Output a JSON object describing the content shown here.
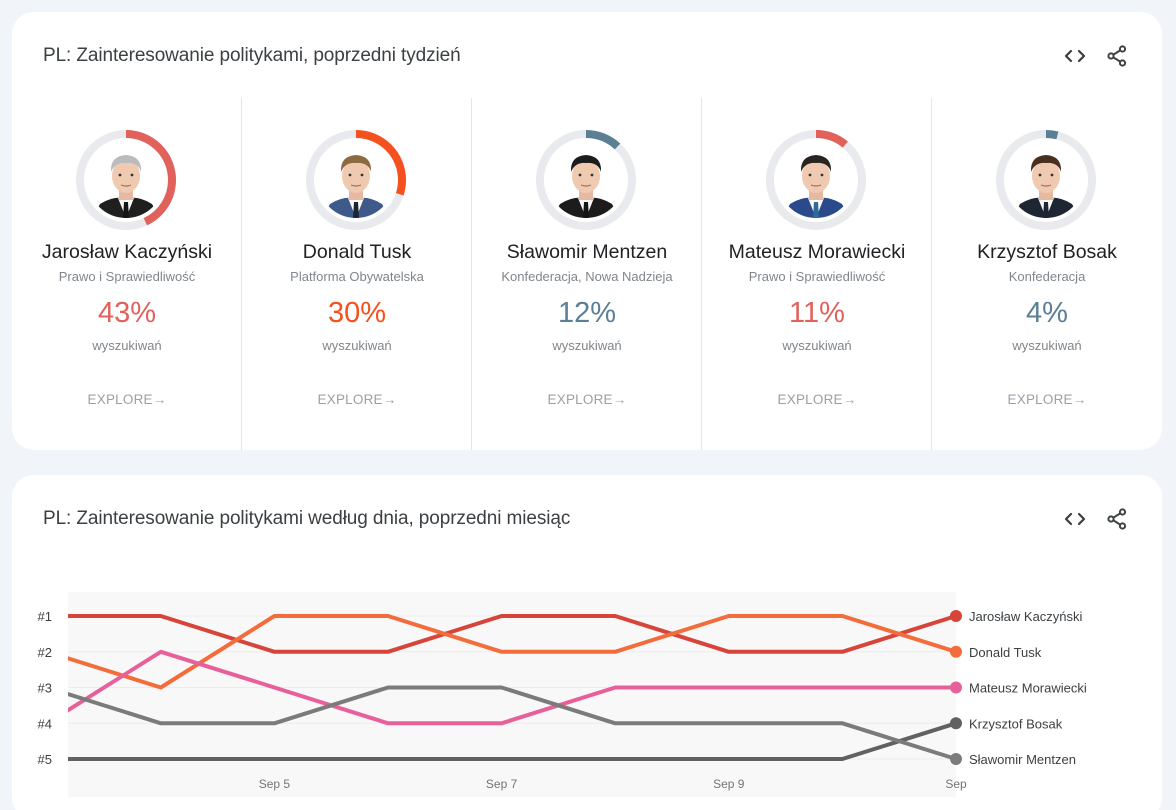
{
  "top_card": {
    "title": "PL: Zainteresowanie politykami, poprzedni tydzień",
    "embed_icon": "code-embed-icon",
    "share_icon": "share-icon",
    "people": [
      {
        "name": "Jarosław Kaczyński",
        "party": "Prawo i Sprawiedliwość",
        "percent": "43%",
        "share": 0.43,
        "color": "#e0625b",
        "percent_label": "wyszukiwań",
        "explore": "EXPLORE",
        "hair": "#b9bcbf",
        "suit": "#1f1f1f",
        "tie": "#151515"
      },
      {
        "name": "Donald Tusk",
        "party": "Platforma Obywatelska",
        "percent": "30%",
        "share": 0.3,
        "color": "#f4511e",
        "percent_label": "wyszukiwań",
        "explore": "EXPLORE",
        "hair": "#8a6a3e",
        "suit": "#3d5a8a",
        "tie": "#1b2433"
      },
      {
        "name": "Sławomir Mentzen",
        "party": "Konfederacja, Nowa Nadzieja",
        "percent": "12%",
        "share": 0.12,
        "color": "#5b7f95",
        "percent_label": "wyszukiwań",
        "explore": "EXPLORE",
        "hair": "#1c1c1c",
        "suit": "#1c1c1c",
        "tie": "#151515"
      },
      {
        "name": "Mateusz Morawiecki",
        "party": "Prawo i Sprawiedliwość",
        "percent": "11%",
        "share": 0.11,
        "color": "#e0625b",
        "percent_label": "wyszukiwań",
        "explore": "EXPLORE",
        "hair": "#2a2420",
        "suit": "#2b4a8b",
        "tie": "#2c6a9a"
      },
      {
        "name": "Krzysztof Bosak",
        "party": "Konfederacja",
        "percent": "4%",
        "share": 0.04,
        "color": "#5b7f95",
        "percent_label": "wyszukiwań",
        "explore": "EXPLORE",
        "hair": "#4a2e1e",
        "suit": "#1e2633",
        "tie": "#1e2633"
      }
    ]
  },
  "bottom_card": {
    "title": "PL: Zainteresowanie politykami według dnia, poprzedni miesiąc",
    "embed_icon": "code-embed-icon",
    "share_icon": "share-icon"
  },
  "chart_data": {
    "type": "line",
    "title": "PL: Zainteresowanie politykami według dnia, poprzedni miesiąc",
    "xlabel": "",
    "ylabel": "",
    "y_is_rank": true,
    "yticks": [
      "#1",
      "#2",
      "#3",
      "#4",
      "#5"
    ],
    "ylim": [
      1,
      5
    ],
    "x": [
      "Sep 3",
      "Sep 4",
      "Sep 5",
      "Sep 6",
      "Sep 7",
      "Sep 8",
      "Sep 9",
      "Sep 10",
      "Sep 11"
    ],
    "x_visible_start": 0.2,
    "xtick_labels": [
      {
        "x": "Sep 5",
        "label": "Sep 5"
      },
      {
        "x": "Sep 7",
        "label": "Sep 7"
      },
      {
        "x": "Sep 9",
        "label": "Sep 9"
      },
      {
        "x": "Sep 11",
        "label": "Sep"
      }
    ],
    "grid": true,
    "legend": "right, end-of-line labels",
    "series": [
      {
        "name": "Jarosław Kaczyński",
        "color": "#d6443a",
        "values": [
          1,
          1,
          2,
          2,
          1,
          1,
          2,
          2,
          1
        ]
      },
      {
        "name": "Donald Tusk",
        "color": "#f26d3b",
        "values": [
          2,
          3,
          1,
          1,
          2,
          2,
          1,
          1,
          2
        ]
      },
      {
        "name": "Mateusz Morawiecki",
        "color": "#e8609a",
        "values": [
          4,
          2,
          3,
          4,
          4,
          3,
          3,
          3,
          3
        ]
      },
      {
        "name": "Krzysztof Bosak",
        "color": "#616161",
        "values": [
          5,
          5,
          5,
          5,
          5,
          5,
          5,
          5,
          4
        ]
      },
      {
        "name": "Sławomir Mentzen",
        "color": "#7b7b7b",
        "values": [
          3,
          4,
          4,
          3,
          3,
          4,
          4,
          4,
          5
        ]
      }
    ]
  }
}
